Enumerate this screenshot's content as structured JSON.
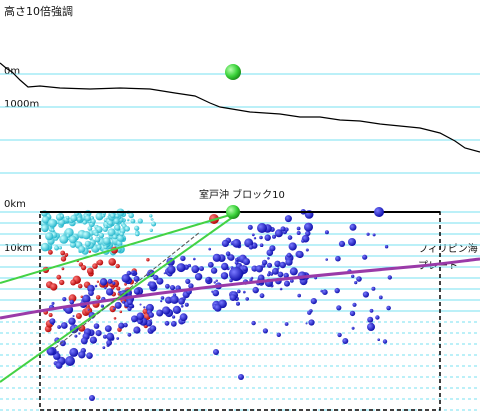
{
  "header": {
    "title": "高さ10倍強調"
  },
  "profile": {
    "label_0m": "0m",
    "label_1000m": "1000m"
  },
  "section": {
    "label_0km": "0km",
    "label_10km": "10km",
    "block_label": "室戸沖 ブロック10",
    "plate_label_line1": "フィリピン海",
    "plate_label_line2": "プレート"
  },
  "colors": {
    "grid_line": "#77e0f0",
    "terrain": "#000000",
    "marker": "#3ad23a",
    "plate_boundary": "#9a3aa8",
    "cluster_shallow": "#22c8d8",
    "cluster_red": "#d01818",
    "cluster_blue": "#1414c8",
    "fault_lines": "#44d244"
  },
  "icons": {
    "location_marker": "green-sphere-icon"
  }
}
